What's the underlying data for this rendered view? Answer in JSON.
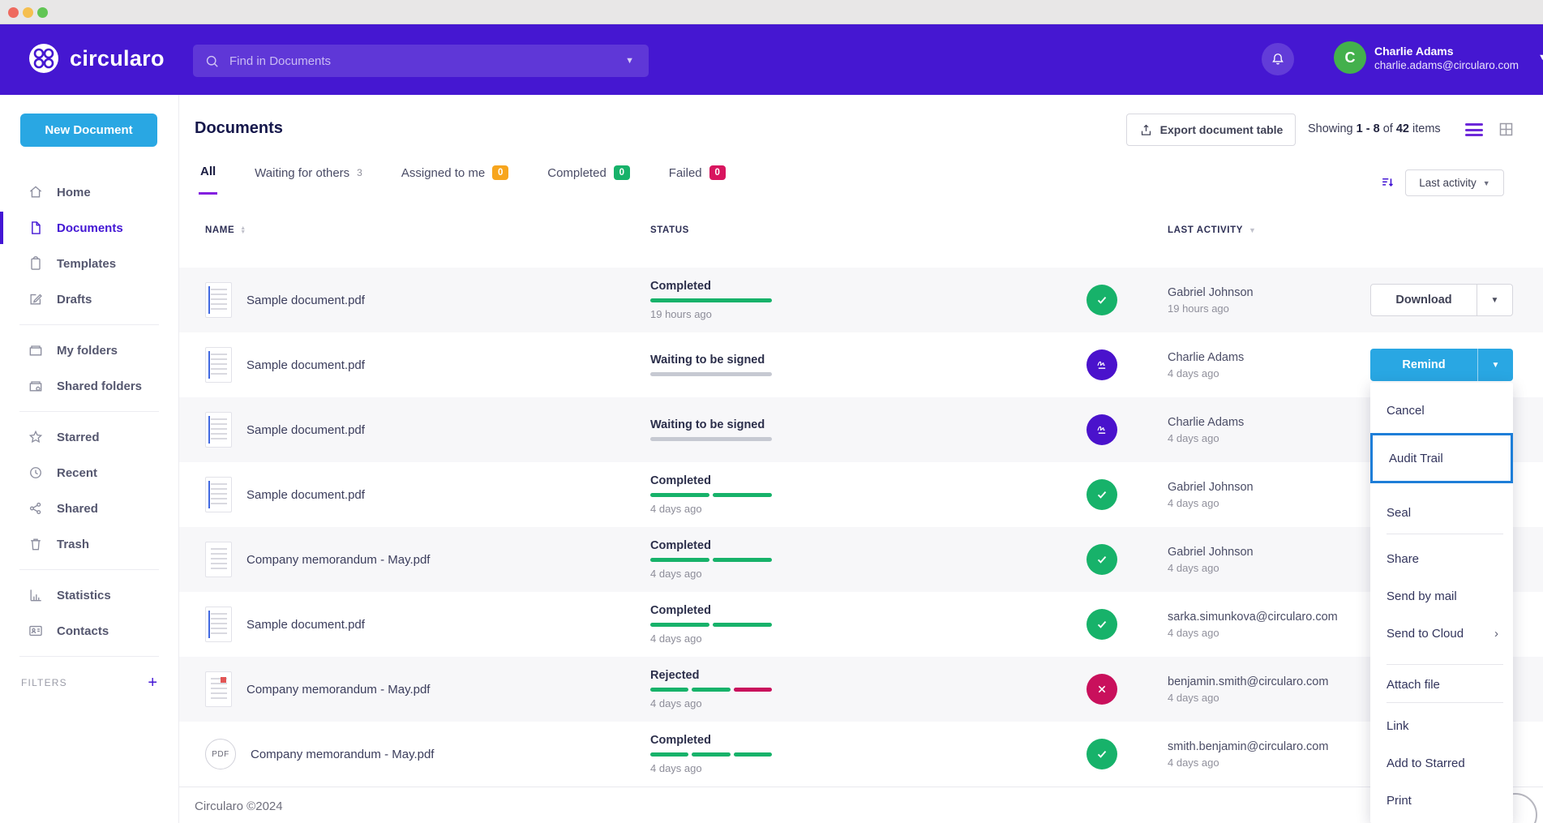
{
  "colors": {
    "header_purple": "#4517d1",
    "accent_purple": "#4316d4",
    "action_blue": "#29a7e3",
    "success_green": "#17b26a",
    "danger_red": "#c9105c",
    "warning_orange": "#f7a51d",
    "highlight_blue": "#1e7ed8",
    "tab_underline": "#831fe0"
  },
  "header": {
    "brand": "circularo",
    "search": {
      "placeholder": "Find in Documents"
    },
    "user": {
      "name": "Charlie Adams",
      "email": "charlie.adams@circularo.com",
      "initial": "C"
    }
  },
  "sidebar": {
    "new_document": "New Document",
    "groups": [
      {
        "items": [
          {
            "label": "Home",
            "icon": "home-icon"
          },
          {
            "label": "Documents",
            "icon": "document-icon",
            "active": true
          },
          {
            "label": "Templates",
            "icon": "clipboard-icon"
          },
          {
            "label": "Drafts",
            "icon": "edit-icon"
          }
        ]
      },
      {
        "items": [
          {
            "label": "My folders",
            "icon": "folder-icon"
          },
          {
            "label": "Shared folders",
            "icon": "shared-folder-icon"
          }
        ]
      },
      {
        "items": [
          {
            "label": "Starred",
            "icon": "star-icon"
          },
          {
            "label": "Recent",
            "icon": "clock-icon"
          },
          {
            "label": "Shared",
            "icon": "share-icon"
          },
          {
            "label": "Trash",
            "icon": "trash-icon"
          }
        ]
      },
      {
        "items": [
          {
            "label": "Statistics",
            "icon": "chart-icon"
          },
          {
            "label": "Contacts",
            "icon": "contacts-icon"
          }
        ]
      }
    ],
    "filters_label": "FILTERS",
    "filters_add": "+"
  },
  "page": {
    "title": "Documents",
    "export_button": "Export document table",
    "showing": {
      "prefix": "Showing",
      "range": "1 - 8",
      "of": "of",
      "total": "42",
      "suffix": "items"
    }
  },
  "tabs": [
    {
      "label": "All",
      "active": true
    },
    {
      "label": "Waiting for others",
      "count": "3"
    },
    {
      "label": "Assigned to me",
      "count": "0",
      "badge": "orange"
    },
    {
      "label": "Completed",
      "count": "0",
      "badge": "green"
    },
    {
      "label": "Failed",
      "count": "0",
      "badge": "red"
    }
  ],
  "sort": {
    "label": "Last activity"
  },
  "table": {
    "headers": {
      "name": "NAME",
      "status": "STATUS",
      "last_activity": "LAST ACTIVITY"
    },
    "rows": [
      {
        "name": "Sample document.pdf",
        "icon": "sample-doc-thumbnail-icon",
        "status": "Completed",
        "status_time": "19 hours ago",
        "segments": [
          "green"
        ],
        "avatar": "check-icon",
        "activity_name": "Gabriel Johnson",
        "activity_time": "19 hours ago",
        "action": "Download"
      },
      {
        "name": "Sample document.pdf",
        "icon": "sample-doc-thumbnail-icon",
        "status": "Waiting to be signed",
        "status_time": "",
        "segments": [
          "gray"
        ],
        "avatar": "signature-icon",
        "activity_name": "Charlie Adams",
        "activity_time": "4 days ago",
        "action": "Remind"
      },
      {
        "name": "Sample document.pdf",
        "icon": "sample-doc-thumbnail-icon",
        "status": "Waiting to be signed",
        "status_time": "",
        "segments": [
          "gray"
        ],
        "avatar": "signature-icon",
        "activity_name": "Charlie Adams",
        "activity_time": "4 days ago",
        "action": ""
      },
      {
        "name": "Sample document.pdf",
        "icon": "sample-doc-thumbnail-icon",
        "status": "Completed",
        "status_time": "4 days ago",
        "segments": [
          "green",
          "green"
        ],
        "avatar": "check-icon",
        "activity_name": "Gabriel Johnson",
        "activity_time": "4 days ago",
        "action": ""
      },
      {
        "name": "Company memorandum - May.pdf",
        "icon": "memo-doc-thumbnail-icon",
        "status": "Completed",
        "status_time": "4 days ago",
        "segments": [
          "green",
          "green"
        ],
        "avatar": "check-icon",
        "activity_name": "Gabriel Johnson",
        "activity_time": "4 days ago",
        "action": ""
      },
      {
        "name": "Sample document.pdf",
        "icon": "sample-doc-thumbnail-icon",
        "status": "Completed",
        "status_time": "4 days ago",
        "segments": [
          "green",
          "green"
        ],
        "avatar": "check-icon",
        "activity_name": "sarka.simunkova@circularo.com",
        "activity_time": "4 days ago",
        "action": ""
      },
      {
        "name": "Company memorandum - May.pdf",
        "icon": "memo-stamp-thumbnail-icon",
        "status": "Rejected",
        "status_time": "4 days ago",
        "segments": [
          "green",
          "green",
          "red"
        ],
        "avatar": "reject-x-icon",
        "activity_name": "benjamin.smith@circularo.com",
        "activity_time": "4 days ago",
        "action": ""
      },
      {
        "name": "Company memorandum - May.pdf",
        "icon": "pdf-circle-icon",
        "icon_label": "PDF",
        "status": "Completed",
        "status_time": "4 days ago",
        "segments": [
          "green",
          "green",
          "green"
        ],
        "avatar": "check-icon",
        "activity_name": "smith.benjamin@circularo.com",
        "activity_time": "4 days ago",
        "action": ""
      }
    ]
  },
  "row_menu": {
    "items": [
      "Cancel",
      "Audit Trail",
      "Seal",
      "Share",
      "Send by mail",
      "Send to Cloud",
      "Attach file",
      "Link",
      "Add to Starred",
      "Print"
    ],
    "highlighted": "Audit Trail",
    "submenu_indicator": "›"
  },
  "footer": {
    "copyright": "Circularo ©2024"
  }
}
